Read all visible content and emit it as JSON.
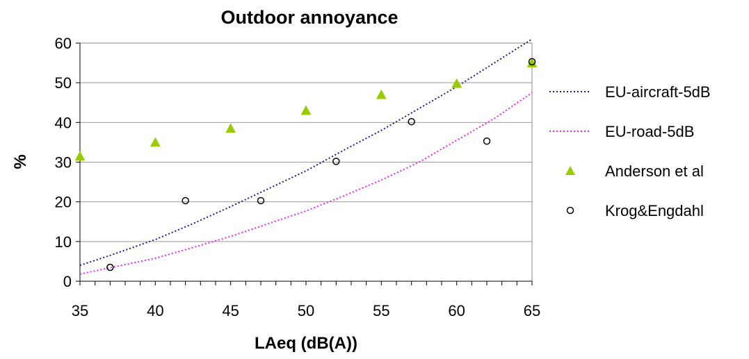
{
  "chart_data": {
    "type": "scatter",
    "title": "Outdoor annoyance",
    "xlabel": "LAeq (dB(A))",
    "ylabel": "%",
    "xlim": [
      35,
      65
    ],
    "ylim": [
      0,
      60
    ],
    "x_ticks": [
      35,
      40,
      45,
      50,
      55,
      60,
      65
    ],
    "y_ticks": [
      0,
      10,
      20,
      30,
      40,
      50,
      60
    ],
    "grid": "horizontal",
    "legend": "right",
    "series": [
      {
        "name": "EU-aircraft-5dB",
        "kind": "line",
        "style": "dotted",
        "color": "#1a1a8c",
        "points": [
          [
            35,
            4
          ],
          [
            37,
            6.5
          ],
          [
            40,
            10.5
          ],
          [
            42.5,
            14.5
          ],
          [
            45,
            18.8
          ],
          [
            47.5,
            23.3
          ],
          [
            50,
            27.8
          ],
          [
            52.5,
            33
          ],
          [
            55,
            38
          ],
          [
            57.5,
            43.5
          ],
          [
            60,
            49
          ],
          [
            62.5,
            55
          ],
          [
            65,
            61
          ]
        ]
      },
      {
        "name": "EU-road-5dB",
        "kind": "line",
        "style": "dotted",
        "color": "#ee22ee",
        "points": [
          [
            35,
            1.8
          ],
          [
            37.5,
            3.8
          ],
          [
            40,
            5.8
          ],
          [
            42.5,
            8.5
          ],
          [
            45,
            11.3
          ],
          [
            47.5,
            14.5
          ],
          [
            50,
            17.7
          ],
          [
            52.5,
            21.5
          ],
          [
            55,
            25.5
          ],
          [
            57.5,
            30
          ],
          [
            60,
            35.5
          ],
          [
            62.5,
            41
          ],
          [
            65,
            47.5
          ]
        ]
      },
      {
        "name": "Anderson et al",
        "kind": "marker",
        "marker": "triangle",
        "color": "#99cc00",
        "points": [
          [
            35,
            31.5
          ],
          [
            40,
            35
          ],
          [
            45,
            38.5
          ],
          [
            50,
            43
          ],
          [
            55,
            47
          ],
          [
            60,
            49.8
          ],
          [
            65,
            55
          ]
        ]
      },
      {
        "name": "Krog&Engdahl",
        "kind": "marker",
        "marker": "circle",
        "color": "#000000",
        "points": [
          [
            37,
            3.5
          ],
          [
            42,
            20.3
          ],
          [
            47,
            20.3
          ],
          [
            52,
            30.2
          ],
          [
            57,
            40.2
          ],
          [
            62,
            35.3
          ],
          [
            65,
            55.3
          ]
        ]
      }
    ]
  }
}
